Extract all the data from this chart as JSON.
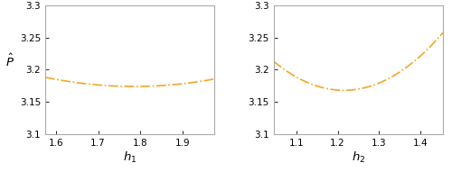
{
  "subplot1": {
    "xlabel": "h_1",
    "xlim": [
      1.575,
      1.975
    ],
    "ylim": [
      3.1,
      3.3
    ],
    "xticks": [
      1.6,
      1.7,
      1.8,
      1.9
    ],
    "yticks": [
      3.1,
      3.15,
      3.2,
      3.25,
      3.3
    ],
    "x_min": 1.575,
    "x_max": 1.975,
    "x_opt": 1.785,
    "y_opt": 3.174,
    "curvature": 0.32
  },
  "subplot2": {
    "xlabel": "h_2",
    "xlim": [
      1.045,
      1.455
    ],
    "ylim": [
      3.1,
      3.3
    ],
    "xticks": [
      1.1,
      1.2,
      1.3,
      1.4
    ],
    "yticks": [
      3.1,
      3.15,
      3.2,
      3.25,
      3.3
    ],
    "x_min": 1.045,
    "x_max": 1.455,
    "x_opt": 1.215,
    "y_opt": 3.168,
    "curvature": 1.55
  },
  "line_color": "#F5A623",
  "line_style": "-.",
  "line_width": 1.2,
  "tick_fontsize": 7.5,
  "label_fontsize": 9.5,
  "figure_facecolor": "#ffffff",
  "axes_facecolor": "#ffffff"
}
